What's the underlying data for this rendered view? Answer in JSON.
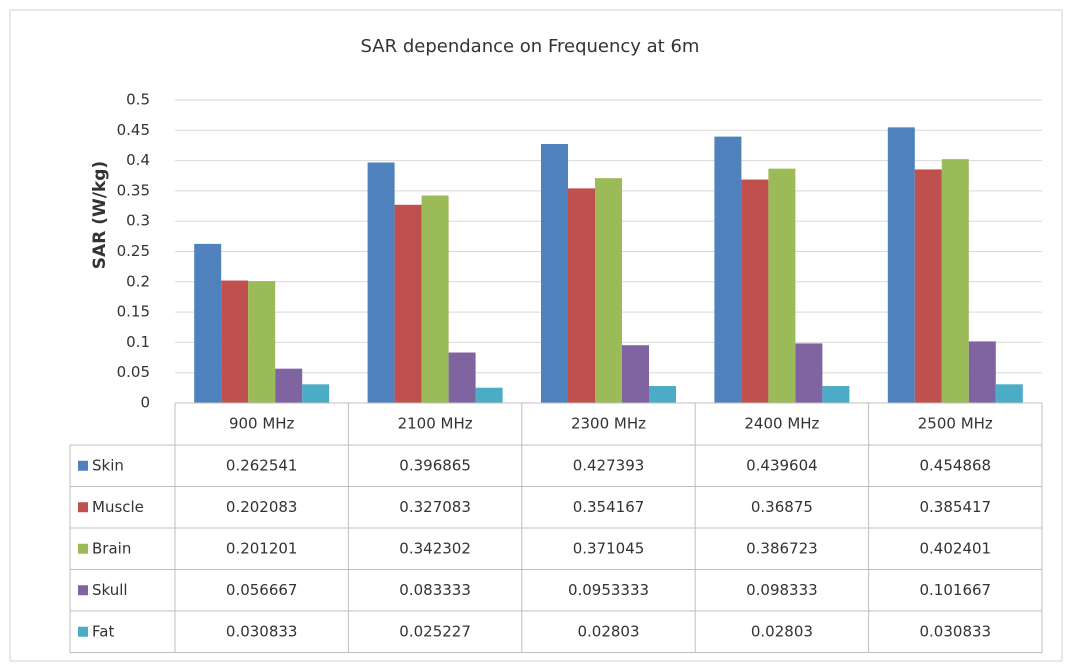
{
  "chart_data": {
    "type": "bar",
    "title": "SAR dependance on Frequency at 6m",
    "y_label": "SAR (W/kg)",
    "categories": [
      "900 MHz",
      "2100 MHz",
      "2300 MHz",
      "2400 MHz",
      "2500 MHz"
    ],
    "series": [
      {
        "name": "Skin",
        "color": "#4f81bd",
        "values": [
          0.262541,
          0.396865,
          0.427393,
          0.439604,
          0.454868
        ]
      },
      {
        "name": "Muscle",
        "color": "#c0504d",
        "values": [
          0.202083,
          0.327083,
          0.354167,
          0.36875,
          0.385417
        ]
      },
      {
        "name": "Brain",
        "color": "#9bbb59",
        "values": [
          0.201201,
          0.342302,
          0.371045,
          0.386723,
          0.402401
        ]
      },
      {
        "name": "Skull",
        "color": "#8064a2",
        "values": [
          0.056667,
          0.083333,
          0.0953333,
          0.098333,
          0.101667
        ]
      },
      {
        "name": "Fat",
        "color": "#4bacc6",
        "values": [
          0.030833,
          0.025227,
          0.02803,
          0.02803,
          0.030833
        ]
      }
    ],
    "ylim": [
      0,
      0.5
    ],
    "yticks": [
      0,
      0.05,
      0.1,
      0.15,
      0.2,
      0.25,
      0.3,
      0.35,
      0.4,
      0.45,
      0.5
    ],
    "grid": true,
    "data_table": true
  }
}
